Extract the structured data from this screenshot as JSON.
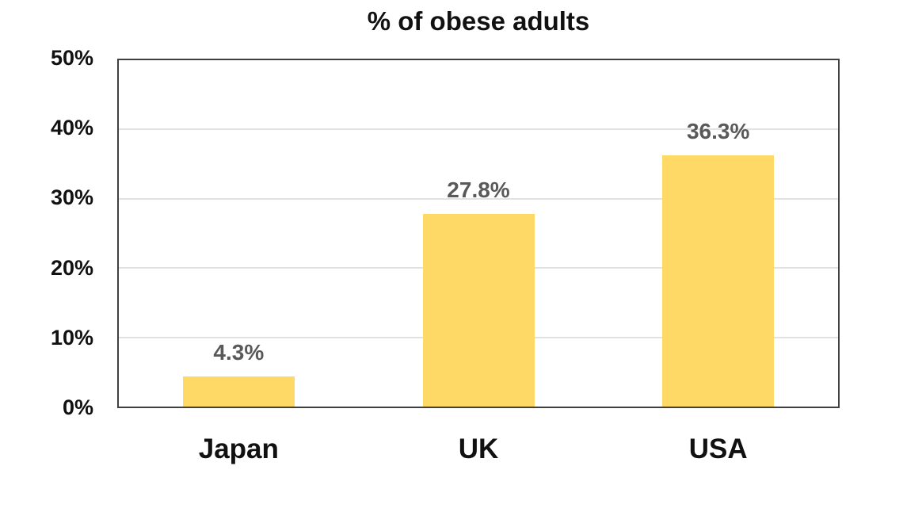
{
  "chart_data": {
    "type": "bar",
    "title": "% of obese adults",
    "categories": [
      "Japan",
      "UK",
      "USA"
    ],
    "values": [
      4.3,
      27.8,
      36.3
    ],
    "value_labels": [
      "4.3%",
      "27.8%",
      "36.3%"
    ],
    "xlabel": "",
    "ylabel": "",
    "ylim": [
      0,
      50
    ],
    "yticks": [
      0,
      10,
      20,
      30,
      40,
      50
    ],
    "ytick_labels": [
      "0%",
      "10%",
      "20%",
      "30%",
      "40%",
      "50%"
    ],
    "grid": true,
    "legend_position": "none",
    "bar_color": "#FFD966",
    "value_label_color": "#595959",
    "axis_text_color": "#111111",
    "gridline_color": "#e2e2e2",
    "plot_border_color": "#404040"
  }
}
